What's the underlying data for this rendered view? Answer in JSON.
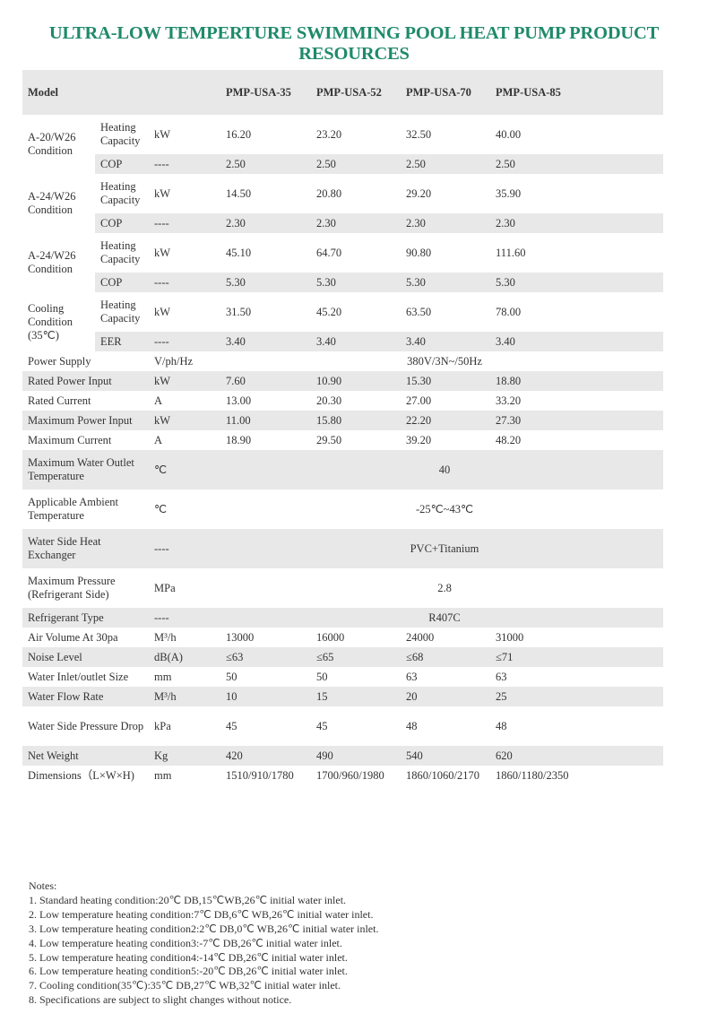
{
  "title": "ULTRA-LOW TEMPERTURE SWIMMING POOL HEAT PUMP PRODUCT RESOURCES",
  "table": {
    "header": {
      "label": "Model",
      "models": [
        "PMP-USA-35",
        "PMP-USA-52",
        "PMP-USA-70",
        "PMP-USA-85"
      ]
    },
    "groups": [
      {
        "label": "A-20/W26 Condition",
        "rows": [
          {
            "sub": "Heating Capacity",
            "unit": "kW",
            "values": [
              "16.20",
              "23.20",
              "32.50",
              "40.00"
            ]
          },
          {
            "sub": "COP",
            "unit": "----",
            "values": [
              "2.50",
              "2.50",
              "2.50",
              "2.50"
            ]
          }
        ]
      },
      {
        "label": "A-24/W26 Condition",
        "rows": [
          {
            "sub": "Heating Capacity",
            "unit": "kW",
            "values": [
              "14.50",
              "20.80",
              "29.20",
              "35.90"
            ]
          },
          {
            "sub": "COP",
            "unit": "----",
            "values": [
              "2.30",
              "2.30",
              "2.30",
              "2.30"
            ]
          }
        ]
      },
      {
        "label": "A-24/W26 Condition",
        "rows": [
          {
            "sub": "Heating Capacity",
            "unit": "kW",
            "values": [
              "45.10",
              "64.70",
              "90.80",
              "111.60"
            ]
          },
          {
            "sub": "COP",
            "unit": "----",
            "values": [
              "5.30",
              "5.30",
              "5.30",
              "5.30"
            ]
          }
        ]
      },
      {
        "label": "Cooling Condition (35℃)",
        "rows": [
          {
            "sub": "Heating Capacity",
            "unit": "kW",
            "values": [
              "31.50",
              "45.20",
              "63.50",
              "78.00"
            ]
          },
          {
            "sub": "EER",
            "unit": "----",
            "values": [
              "3.40",
              "3.40",
              "3.40",
              "3.40"
            ]
          }
        ]
      }
    ],
    "rows": [
      {
        "label": "Power Supply",
        "unit": "V/ph/Hz",
        "span": "380V/3N~/50Hz"
      },
      {
        "label": "Rated Power Input",
        "unit": "kW",
        "values": [
          "7.60",
          "10.90",
          "15.30",
          "18.80"
        ]
      },
      {
        "label": "Rated Current",
        "unit": "A",
        "values": [
          "13.00",
          "20.30",
          "27.00",
          "33.20"
        ]
      },
      {
        "label": "Maximum Power Input",
        "unit": "kW",
        "values": [
          "11.00",
          "15.80",
          "22.20",
          "27.30"
        ]
      },
      {
        "label": "Maximum Current",
        "unit": "A",
        "values": [
          "18.90",
          "29.50",
          "39.20",
          "48.20"
        ]
      },
      {
        "label": "Maximum Water Outlet Temperature",
        "unit": "℃",
        "span": "40",
        "tall": true
      },
      {
        "label": "Applicable Ambient Temperature",
        "unit": "℃",
        "span": "-25℃~43℃",
        "tall": true
      },
      {
        "label": "Water Side Heat Exchanger",
        "unit": "----",
        "span": "PVC+Titanium",
        "tall": true
      },
      {
        "label": "Maximum Pressure (Refrigerant Side)",
        "unit": "MPa",
        "span": "2.8",
        "tall": true
      },
      {
        "label": "Refrigerant Type",
        "unit": "----",
        "span": "R407C"
      },
      {
        "label": "Air Volume At 30pa",
        "unit": "M³/h",
        "values": [
          "13000",
          "16000",
          "24000",
          "31000"
        ]
      },
      {
        "label": "Noise Level",
        "unit": "dB(A)",
        "values": [
          "≤63",
          "≤65",
          "≤68",
          "≤71"
        ]
      },
      {
        "label": "Water Inlet/outlet Size",
        "unit": "mm",
        "values": [
          "50",
          "50",
          "63",
          "63"
        ]
      },
      {
        "label": "Water Flow Rate",
        "unit": "M³/h",
        "values": [
          "10",
          "15",
          "20",
          "25"
        ]
      },
      {
        "label": "Water Side Pressure Drop",
        "unit": "kPa",
        "values": [
          "45",
          "45",
          "48",
          "48"
        ],
        "tall": true
      },
      {
        "label": "Net Weight",
        "unit": "Kg",
        "values": [
          "420",
          "490",
          "540",
          "620"
        ]
      },
      {
        "label": "Dimensions（L×W×H)",
        "unit": "mm",
        "values": [
          "1510/910/1780",
          "1700/960/1980",
          "1860/1060/2170",
          "1860/1180/2350"
        ]
      }
    ]
  },
  "notes": {
    "heading": "Notes:",
    "items": [
      "1. Standard heating condition:20℃ DB,15℃WB,26℃ initial water inlet.",
      "2. Low temperature heating condition:7℃ DB,6℃ WB,26℃ initial water inlet.",
      "3. Low temperature heating condition2:2℃ DB,0℃ WB,26℃ initial water inlet.",
      "4. Low temperature heating condition3:-7℃ DB,26℃ initial water inlet.",
      "5. Low temperature heating condition4:-14℃ DB,26℃ initial water inlet.",
      "6. Low temperature heating condition5:-20℃ DB,26℃ initial water inlet.",
      "7. Cooling condition(35℃):35℃ DB,27℃ WB,32℃ initial water inlet.",
      "8. Specifications are subject to slight changes without notice."
    ]
  },
  "colors": {
    "title": "#1f8a6a",
    "stripe": "#e8e8e8"
  }
}
